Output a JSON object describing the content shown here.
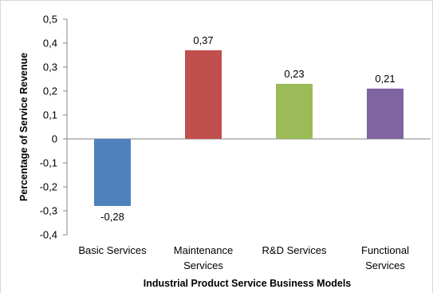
{
  "chart_data": {
    "type": "bar",
    "title": "",
    "xlabel": "Industrial Product Service Business Models",
    "ylabel": "Percentage of Service Revenue",
    "categories": [
      [
        "Basic Services"
      ],
      [
        "Maintenance",
        "Services"
      ],
      [
        "R&D Services"
      ],
      [
        "Functional",
        "Services"
      ]
    ],
    "values": [
      -0.28,
      0.37,
      0.23,
      0.21
    ],
    "data_labels": [
      "-0,28",
      "0,37",
      "0,23",
      "0,21"
    ],
    "colors": [
      "#4f81bd",
      "#c0504d",
      "#9bbb59",
      "#8064a2"
    ],
    "ylim": [
      -0.4,
      0.5
    ],
    "yticks": [
      0.5,
      0.4,
      0.3,
      0.2,
      0.1,
      0,
      -0.1,
      -0.2,
      -0.3,
      -0.4
    ],
    "ytick_labels": [
      "0,5",
      "0,4",
      "0,3",
      "0,2",
      "0,1",
      "0",
      "-0,1",
      "-0,2",
      "-0,3",
      "-0,4"
    ],
    "grid": false,
    "legend": "none"
  }
}
